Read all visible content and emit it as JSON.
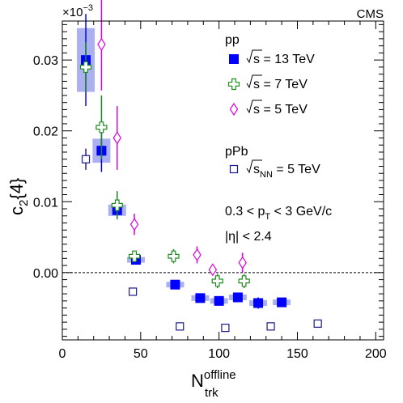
{
  "chart_data": {
    "type": "scatter",
    "experiment_label": "CMS",
    "exponent_label": "×10",
    "exponent_power": "−3",
    "xlabel": {
      "main": "N",
      "sup": "offline",
      "sub": "trk"
    },
    "ylabel": {
      "main": "c",
      "sub": "2",
      "tail": "{4}"
    },
    "xlim": [
      0,
      205
    ],
    "ylim": [
      -0.0095,
      0.0355
    ],
    "xticks": [
      0,
      50,
      100,
      150,
      200
    ],
    "xtick_labels": [
      "0",
      "50",
      "100",
      "150",
      "200"
    ],
    "yticks": [
      0.0,
      0.01,
      0.02,
      0.03
    ],
    "ytick_labels": [
      "0.00",
      "0.01",
      "0.02",
      "0.03"
    ],
    "zero_line": true,
    "legend_pp_title": "pp",
    "legend_ppb_title": "pPb",
    "cuts": [
      "0.3 < p_T < 3 GeV/c",
      "|η| < 2.4"
    ],
    "cut_lines": [
      {
        "pre": "0.3 < p",
        "sub": "T",
        "post": " < 3 GeV/c"
      },
      {
        "pre": "|η| < 2.4",
        "sub": "",
        "post": ""
      }
    ],
    "series": [
      {
        "name": "√s = 13 TeV",
        "legend": {
          "prefix": "s",
          "suffix": " = 13 TeV",
          "sub": ""
        },
        "group": "pp",
        "marker": "filled-square",
        "color": "#0000ff",
        "syst_color": "#aab0f0",
        "points": [
          {
            "x": 15,
            "y": 0.03,
            "err": 0.0065,
            "sys": 0.0045
          },
          {
            "x": 25,
            "y": 0.0172,
            "err": 0.003,
            "sys": 0.0017
          },
          {
            "x": 35,
            "y": 0.0088,
            "err": 0.001,
            "sys": 0.0008
          },
          {
            "x": 47,
            "y": 0.0018,
            "err": 0.0004,
            "sys": 0.0004
          },
          {
            "x": 72,
            "y": -0.0017,
            "err": 0.0003,
            "sys": 0.0004
          },
          {
            "x": 88,
            "y": -0.0036,
            "err": 0.0004,
            "sys": 0.0004
          },
          {
            "x": 100,
            "y": -0.004,
            "err": 0.0005,
            "sys": 0.0004
          },
          {
            "x": 112,
            "y": -0.0035,
            "err": 0.0006,
            "sys": 0.0004
          },
          {
            "x": 125,
            "y": -0.0043,
            "err": 0.0008,
            "sys": 0.0004
          },
          {
            "x": 140,
            "y": -0.0042,
            "err": 0.0005,
            "sys": 0.0004
          }
        ]
      },
      {
        "name": "√s = 7 TeV",
        "legend": {
          "prefix": "s",
          "suffix": " = 7 TeV",
          "sub": ""
        },
        "group": "pp",
        "marker": "open-cross",
        "color": "#1e8b1e",
        "points": [
          {
            "x": 15,
            "y": 0.029,
            "err": 0.0035
          },
          {
            "x": 25,
            "y": 0.0205,
            "err": 0.0045
          },
          {
            "x": 35,
            "y": 0.0095,
            "err": 0.002
          },
          {
            "x": 46,
            "y": 0.0023,
            "err": 0.0008
          },
          {
            "x": 71,
            "y": 0.0023,
            "err": 0.001
          },
          {
            "x": 99,
            "y": -0.0012,
            "err": 0.001
          },
          {
            "x": 116,
            "y": -0.0012,
            "err": 0.001
          }
        ]
      },
      {
        "name": "√s = 5 TeV",
        "legend": {
          "prefix": "s",
          "suffix": " = 5 TeV",
          "sub": ""
        },
        "group": "pp",
        "marker": "open-diamond",
        "color": "#e000e0",
        "points": [
          {
            "x": 25,
            "y": 0.0322,
            "err": 0.0065
          },
          {
            "x": 35,
            "y": 0.019,
            "err": 0.0045
          },
          {
            "x": 46,
            "y": 0.0068,
            "err": 0.0015
          },
          {
            "x": 86,
            "y": 0.0025,
            "err": 0.0012
          },
          {
            "x": 96,
            "y": 0.0004,
            "err": 0.0006
          },
          {
            "x": 115,
            "y": 0.0014,
            "err": 0.0014
          }
        ]
      },
      {
        "name": "√s_NN = 5 TeV",
        "legend": {
          "prefix": "s",
          "suffix": " = 5 TeV",
          "sub": "NN"
        },
        "group": "pPb",
        "marker": "open-square",
        "color": "#1a1a8c",
        "points": [
          {
            "x": 15,
            "y": 0.016,
            "err": 0.0015
          },
          {
            "x": 45,
            "y": -0.0027,
            "err": 0.0003
          },
          {
            "x": 75,
            "y": -0.0076,
            "err": 0.0002
          },
          {
            "x": 104,
            "y": -0.0078,
            "err": 0.0002
          },
          {
            "x": 133,
            "y": -0.0076,
            "err": 0.0002
          },
          {
            "x": 163,
            "y": -0.0072,
            "err": 0.0002
          }
        ]
      }
    ]
  }
}
